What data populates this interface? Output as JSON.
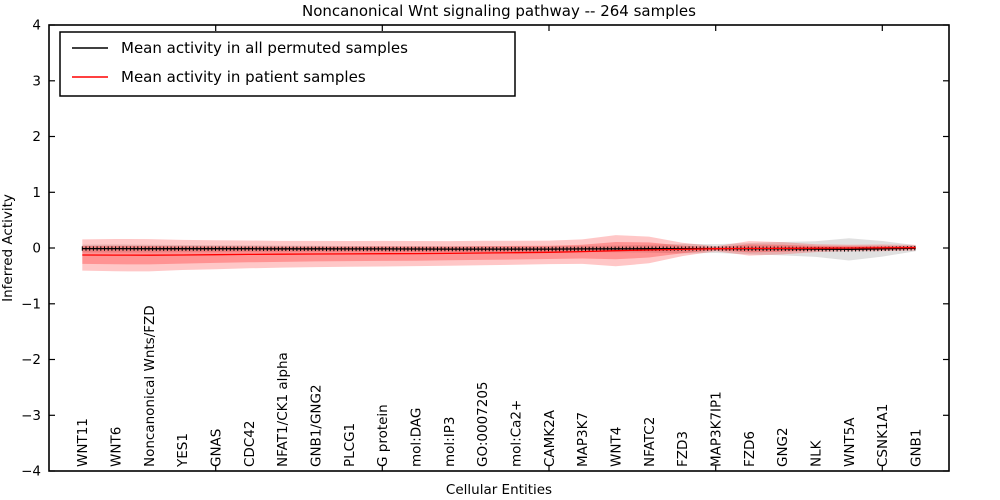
{
  "chart_data": {
    "type": "line",
    "title": "Noncanonical Wnt signaling pathway -- 264 samples",
    "xlabel": "Cellular Entities",
    "ylabel": "Inferred Activity",
    "ylim": [
      -4,
      4
    ],
    "yticks": [
      4,
      3,
      2,
      1,
      0,
      -1,
      -2,
      -3,
      -4
    ],
    "x_major_tick_indices": [
      4,
      9,
      14,
      19,
      24
    ],
    "grid": false,
    "legend": {
      "position": "upper-left",
      "entries": [
        {
          "label": "Mean activity in all permuted samples",
          "color": "#000000"
        },
        {
          "label": "Mean activity in patient samples",
          "color": "#ff0000"
        }
      ]
    },
    "categories": [
      "WNT11",
      "WNT6",
      "Noncanonical Wnts/FZD",
      "YES1",
      "GNAS",
      "CDC42",
      "NFAT1/CK1 alpha",
      "GNB1/GNG2",
      "PLCG1",
      "G protein",
      "mol:DAG",
      "mol:IP3",
      "GO:0007205",
      "mol:Ca2+",
      "CAMK2A",
      "MAP3K7",
      "WNT4",
      "NFATC2",
      "FZD3",
      "MAP3K7IP1",
      "FZD6",
      "GNG2",
      "NLK",
      "WNT5A",
      "CSNK1A1",
      "GNB1"
    ],
    "series": [
      {
        "name": "Mean activity in all permuted samples",
        "color": "#000000",
        "marker": "plus-ticks",
        "values": [
          -0.01,
          -0.01,
          -0.012,
          -0.012,
          -0.013,
          -0.013,
          -0.015,
          -0.015,
          -0.016,
          -0.017,
          -0.018,
          -0.019,
          -0.02,
          -0.02,
          -0.019,
          -0.017,
          -0.015,
          -0.013,
          -0.012,
          -0.01,
          -0.012,
          -0.013,
          -0.02,
          -0.025,
          -0.015,
          -0.003
        ]
      },
      {
        "name": "Mean activity in patient samples",
        "color": "#ff0000",
        "marker": "none",
        "values": [
          -0.125,
          -0.128,
          -0.13,
          -0.125,
          -0.12,
          -0.115,
          -0.112,
          -0.108,
          -0.105,
          -0.102,
          -0.1,
          -0.097,
          -0.09,
          -0.085,
          -0.078,
          -0.065,
          -0.048,
          -0.035,
          -0.025,
          -0.012,
          -0.007,
          -0.005,
          -0.003,
          0.0,
          0.003,
          0.006
        ]
      }
    ],
    "bands": [
      {
        "name": "permuted-samples-band",
        "color": "#999999",
        "opacity": 0.3,
        "center_series": 0,
        "half_widths": [
          0.07,
          0.072,
          0.07,
          0.065,
          0.062,
          0.06,
          0.058,
          0.055,
          0.052,
          0.05,
          0.05,
          0.05,
          0.05,
          0.05,
          0.052,
          0.055,
          0.06,
          0.07,
          0.085,
          0.08,
          0.1,
          0.12,
          0.14,
          0.2,
          0.14,
          0.055
        ]
      },
      {
        "name": "patient-samples-outer-band",
        "color": "#ff0000",
        "opacity": 0.22,
        "center_series": 1,
        "half_widths": [
          0.28,
          0.29,
          0.29,
          0.27,
          0.26,
          0.25,
          0.24,
          0.235,
          0.23,
          0.23,
          0.225,
          0.22,
          0.22,
          0.215,
          0.21,
          0.22,
          0.28,
          0.24,
          0.12,
          0.045,
          0.13,
          0.11,
          0.07,
          0.06,
          0.06,
          0.05
        ]
      },
      {
        "name": "patient-samples-inner-band",
        "color": "#ff0000",
        "opacity": 0.26,
        "center_series": 1,
        "half_widths": [
          0.16,
          0.165,
          0.165,
          0.155,
          0.148,
          0.142,
          0.137,
          0.133,
          0.13,
          0.13,
          0.127,
          0.124,
          0.124,
          0.122,
          0.119,
          0.124,
          0.155,
          0.135,
          0.068,
          0.026,
          0.072,
          0.062,
          0.04,
          0.034,
          0.034,
          0.028
        ]
      }
    ]
  }
}
